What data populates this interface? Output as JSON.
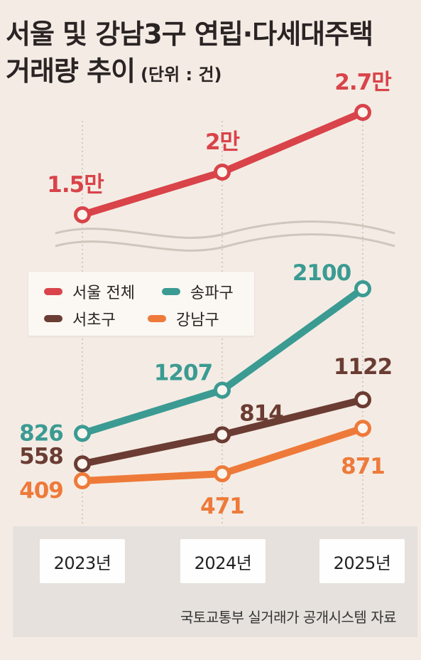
{
  "title": {
    "line1": "서울 및 강남3구 연립·다세대주택",
    "line2": "거래량 추이",
    "unit": "(단위 : 건)"
  },
  "chart_data": {
    "type": "line",
    "title": "서울 및 강남3구 연립·다세대주택 거래량 추이",
    "unit": "(단위 : 건)",
    "categories": [
      "2023년",
      "2024년",
      "2025년"
    ],
    "axis_break": true,
    "series": [
      {
        "name": "서울 전체",
        "values": [
          15000,
          20000,
          27000
        ],
        "labels": [
          "1.5만",
          "2만",
          "2.7만"
        ],
        "color": "#d9434a"
      },
      {
        "name": "송파구",
        "values": [
          826,
          1207,
          2100
        ],
        "labels": [
          "826",
          "1207",
          "2100"
        ],
        "color": "#3b9b93"
      },
      {
        "name": "서초구",
        "values": [
          558,
          814,
          1122
        ],
        "labels": [
          "558",
          "814",
          "1122"
        ],
        "color": "#6b3c33"
      },
      {
        "name": "강남구",
        "values": [
          409,
          471,
          871
        ],
        "labels": [
          "409",
          "471",
          "871"
        ],
        "color": "#ee7a3a"
      }
    ],
    "legend_position": "upper-left",
    "grid": false
  },
  "source": "국토교통부 실거래가 공개시스템 자료"
}
